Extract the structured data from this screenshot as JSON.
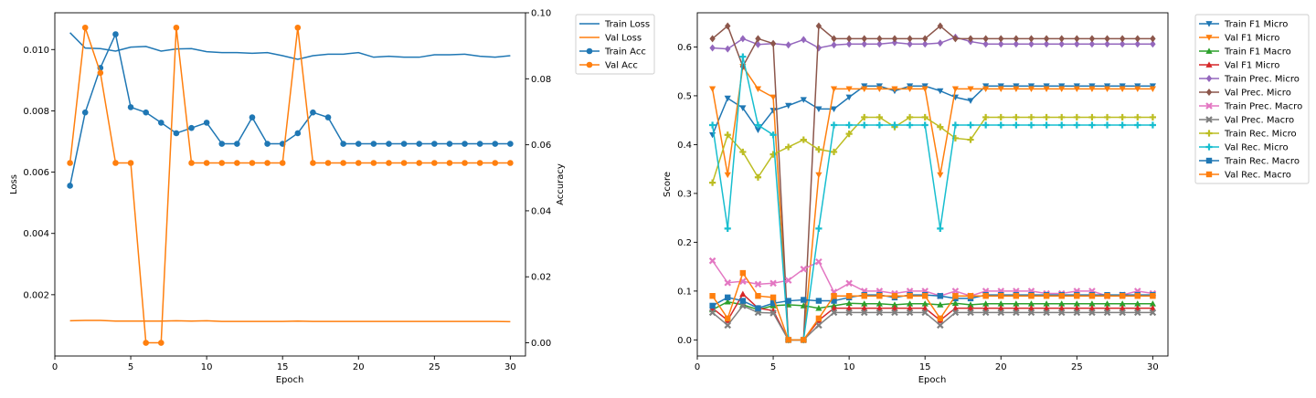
{
  "chart_data": [
    {
      "type": "line",
      "xlabel": "Epoch",
      "ylabel": "Loss",
      "y2label": "Accuracy",
      "xlim": [
        0,
        31
      ],
      "ylim": [
        0,
        0.0112
      ],
      "y2lim": [
        -0.004,
        0.1
      ],
      "xticks": [
        0,
        5,
        10,
        15,
        20,
        25,
        30
      ],
      "yticks": [
        0.002,
        0.004,
        0.006,
        0.008,
        0.01
      ],
      "yticklabels": [
        "0.002",
        "0.004",
        "0.006",
        "0.008",
        "0.010"
      ],
      "y2ticks": [
        0,
        0.02,
        0.04,
        0.06,
        0.08,
        0.1
      ],
      "y2ticklabels": [
        "0.00",
        "0.02",
        "0.04",
        "0.06",
        "0.08",
        "0.10"
      ],
      "legend_position": "outside-top-right",
      "x": [
        1,
        2,
        3,
        4,
        5,
        6,
        7,
        8,
        9,
        10,
        11,
        12,
        13,
        14,
        15,
        16,
        17,
        18,
        19,
        20,
        21,
        22,
        23,
        24,
        25,
        26,
        27,
        28,
        29,
        30
      ],
      "series": [
        {
          "name": "Train Loss",
          "axis": "left",
          "color": "#1f77b4",
          "marker": "none",
          "values": [
            0.01055,
            0.01005,
            0.01003,
            0.00995,
            0.01008,
            0.0101,
            0.00995,
            0.01002,
            0.01003,
            0.00993,
            0.0099,
            0.0099,
            0.00988,
            0.0099,
            0.0098,
            0.00968,
            0.0098,
            0.00985,
            0.00985,
            0.0099,
            0.00975,
            0.00978,
            0.00975,
            0.00975,
            0.00983,
            0.00983,
            0.00985,
            0.00978,
            0.00975,
            0.0098
          ]
        },
        {
          "name": "Val Loss",
          "axis": "left",
          "color": "#ff7f0e",
          "marker": "none",
          "values": [
            0.00115,
            0.00116,
            0.00116,
            0.00114,
            0.00114,
            0.00114,
            0.00114,
            0.00115,
            0.00114,
            0.00115,
            0.00113,
            0.00113,
            0.00113,
            0.00113,
            0.00113,
            0.00114,
            0.00113,
            0.00113,
            0.00113,
            0.00113,
            0.00113,
            0.00113,
            0.00113,
            0.00113,
            0.00113,
            0.00113,
            0.00113,
            0.00113,
            0.00113,
            0.00112
          ]
        },
        {
          "name": "Train Acc",
          "axis": "right",
          "color": "#1f77b4",
          "marker": "circle",
          "values": [
            0.0476,
            0.0698,
            0.0833,
            0.0935,
            0.0714,
            0.0698,
            0.0667,
            0.0635,
            0.0651,
            0.0667,
            0.0603,
            0.0603,
            0.0683,
            0.0603,
            0.0603,
            0.0635,
            0.0698,
            0.0683,
            0.0603,
            0.0603,
            0.0603,
            0.0603,
            0.0603,
            0.0603,
            0.0603,
            0.0603,
            0.0603,
            0.0603,
            0.0603,
            0.0603
          ]
        },
        {
          "name": "Val Acc",
          "axis": "right",
          "color": "#ff7f0e",
          "marker": "circle",
          "values": [
            0.0545,
            0.0955,
            0.0818,
            0.0545,
            0.0545,
            0.0,
            0.0,
            0.0955,
            0.0545,
            0.0545,
            0.0545,
            0.0545,
            0.0545,
            0.0545,
            0.0545,
            0.0955,
            0.0545,
            0.0545,
            0.0545,
            0.0545,
            0.0545,
            0.0545,
            0.0545,
            0.0545,
            0.0545,
            0.0545,
            0.0545,
            0.0545,
            0.0545,
            0.0545
          ]
        }
      ]
    },
    {
      "type": "line",
      "xlabel": "Epoch",
      "ylabel": "Score",
      "xlim": [
        0,
        31
      ],
      "ylim": [
        -0.033,
        0.67
      ],
      "xticks": [
        0,
        5,
        10,
        15,
        20,
        25,
        30
      ],
      "yticks": [
        0,
        0.1,
        0.2,
        0.3,
        0.4,
        0.5,
        0.6
      ],
      "yticklabels": [
        "0.0",
        "0.1",
        "0.2",
        "0.3",
        "0.4",
        "0.5",
        "0.6"
      ],
      "legend_position": "outside-top-right",
      "x": [
        1,
        2,
        3,
        4,
        5,
        6,
        7,
        8,
        9,
        10,
        11,
        12,
        13,
        14,
        15,
        16,
        17,
        18,
        19,
        20,
        21,
        22,
        23,
        24,
        25,
        26,
        27,
        28,
        29,
        30
      ],
      "series": [
        {
          "name": "Train F1 Micro",
          "color": "#1f77b4",
          "marker": "triangle-down",
          "values": [
            0.42,
            0.495,
            0.475,
            0.43,
            0.47,
            0.48,
            0.492,
            0.473,
            0.473,
            0.497,
            0.52,
            0.52,
            0.51,
            0.52,
            0.52,
            0.51,
            0.497,
            0.49,
            0.52,
            0.52,
            0.52,
            0.52,
            0.52,
            0.52,
            0.52,
            0.52,
            0.52,
            0.52,
            0.52,
            0.52
          ]
        },
        {
          "name": "Val F1 Micro",
          "color": "#ff7f0e",
          "marker": "triangle-down",
          "values": [
            0.514,
            0.338,
            0.56,
            0.514,
            0.497,
            0.0,
            0.0,
            0.338,
            0.514,
            0.514,
            0.514,
            0.514,
            0.514,
            0.514,
            0.514,
            0.338,
            0.514,
            0.514,
            0.514,
            0.514,
            0.514,
            0.514,
            0.514,
            0.514,
            0.514,
            0.514,
            0.514,
            0.514,
            0.514,
            0.514
          ]
        },
        {
          "name": "Train F1 Macro",
          "color": "#2ca02c",
          "marker": "triangle-up",
          "values": [
            0.062,
            0.078,
            0.072,
            0.062,
            0.07,
            0.072,
            0.07,
            0.065,
            0.07,
            0.075,
            0.074,
            0.074,
            0.072,
            0.074,
            0.074,
            0.072,
            0.075,
            0.072,
            0.074,
            0.074,
            0.074,
            0.074,
            0.074,
            0.074,
            0.074,
            0.074,
            0.074,
            0.074,
            0.074,
            0.074
          ]
        },
        {
          "name": "Val F1 Micro",
          "color": "#d62728",
          "marker": "triangle-up",
          "values": [
            0.065,
            0.04,
            0.094,
            0.065,
            0.06,
            0.0,
            0.0,
            0.04,
            0.065,
            0.065,
            0.065,
            0.065,
            0.065,
            0.065,
            0.065,
            0.04,
            0.065,
            0.065,
            0.065,
            0.065,
            0.065,
            0.065,
            0.065,
            0.065,
            0.065,
            0.065,
            0.065,
            0.065,
            0.065,
            0.065
          ]
        },
        {
          "name": "Train Prec. Micro",
          "color": "#9467bd",
          "marker": "diamond",
          "values": [
            0.598,
            0.596,
            0.617,
            0.605,
            0.607,
            0.604,
            0.615,
            0.598,
            0.604,
            0.606,
            0.606,
            0.606,
            0.609,
            0.606,
            0.606,
            0.608,
            0.62,
            0.611,
            0.606,
            0.606,
            0.606,
            0.606,
            0.606,
            0.606,
            0.606,
            0.606,
            0.606,
            0.606,
            0.606,
            0.606
          ]
        },
        {
          "name": "Val Prec. Micro",
          "color": "#8c564b",
          "marker": "diamond",
          "values": [
            0.617,
            0.643,
            0.56,
            0.617,
            0.607,
            0.0,
            0.0,
            0.643,
            0.617,
            0.617,
            0.617,
            0.617,
            0.617,
            0.617,
            0.617,
            0.643,
            0.617,
            0.617,
            0.617,
            0.617,
            0.617,
            0.617,
            0.617,
            0.617,
            0.617,
            0.617,
            0.617,
            0.617,
            0.617,
            0.617
          ]
        },
        {
          "name": "Train Prec. Macro",
          "color": "#e377c2",
          "marker": "x",
          "values": [
            0.162,
            0.117,
            0.12,
            0.114,
            0.116,
            0.122,
            0.145,
            0.16,
            0.098,
            0.116,
            0.1,
            0.1,
            0.095,
            0.1,
            0.1,
            0.09,
            0.1,
            0.09,
            0.1,
            0.1,
            0.1,
            0.1,
            0.095,
            0.095,
            0.1,
            0.1,
            0.09,
            0.092,
            0.1,
            0.095
          ]
        },
        {
          "name": "Val Prec. Macro",
          "color": "#7f7f7f",
          "marker": "x",
          "values": [
            0.056,
            0.03,
            0.07,
            0.056,
            0.055,
            0.0,
            0.0,
            0.03,
            0.056,
            0.056,
            0.056,
            0.056,
            0.056,
            0.056,
            0.056,
            0.03,
            0.056,
            0.056,
            0.056,
            0.056,
            0.056,
            0.056,
            0.056,
            0.056,
            0.056,
            0.056,
            0.056,
            0.056,
            0.056,
            0.056
          ]
        },
        {
          "name": "Train Rec. Micro",
          "color": "#bcbd22",
          "marker": "plus",
          "values": [
            0.322,
            0.42,
            0.385,
            0.333,
            0.38,
            0.395,
            0.41,
            0.39,
            0.385,
            0.422,
            0.456,
            0.456,
            0.436,
            0.456,
            0.456,
            0.436,
            0.413,
            0.41,
            0.456,
            0.456,
            0.456,
            0.456,
            0.456,
            0.456,
            0.456,
            0.456,
            0.456,
            0.456,
            0.456,
            0.456
          ]
        },
        {
          "name": "Val Rec. Micro",
          "color": "#17becf",
          "marker": "plus",
          "values": [
            0.44,
            0.228,
            0.58,
            0.44,
            0.42,
            0.0,
            0.0,
            0.228,
            0.44,
            0.44,
            0.44,
            0.44,
            0.44,
            0.44,
            0.44,
            0.228,
            0.44,
            0.44,
            0.44,
            0.44,
            0.44,
            0.44,
            0.44,
            0.44,
            0.44,
            0.44,
            0.44,
            0.44,
            0.44,
            0.44
          ]
        },
        {
          "name": "Train Rec. Macro",
          "color": "#1f77b4",
          "marker": "square",
          "values": [
            0.07,
            0.087,
            0.08,
            0.065,
            0.075,
            0.08,
            0.082,
            0.08,
            0.08,
            0.087,
            0.092,
            0.092,
            0.087,
            0.092,
            0.092,
            0.09,
            0.085,
            0.085,
            0.092,
            0.092,
            0.092,
            0.092,
            0.092,
            0.092,
            0.092,
            0.092,
            0.092,
            0.092,
            0.092,
            0.092
          ]
        },
        {
          "name": "Val Rec. Macro",
          "color": "#ff7f0e",
          "marker": "square",
          "values": [
            0.09,
            0.044,
            0.137,
            0.09,
            0.087,
            0.0,
            0.0,
            0.044,
            0.09,
            0.09,
            0.09,
            0.09,
            0.09,
            0.09,
            0.09,
            0.044,
            0.09,
            0.09,
            0.09,
            0.09,
            0.09,
            0.09,
            0.09,
            0.09,
            0.09,
            0.09,
            0.09,
            0.09,
            0.09,
            0.09
          ]
        }
      ]
    }
  ]
}
